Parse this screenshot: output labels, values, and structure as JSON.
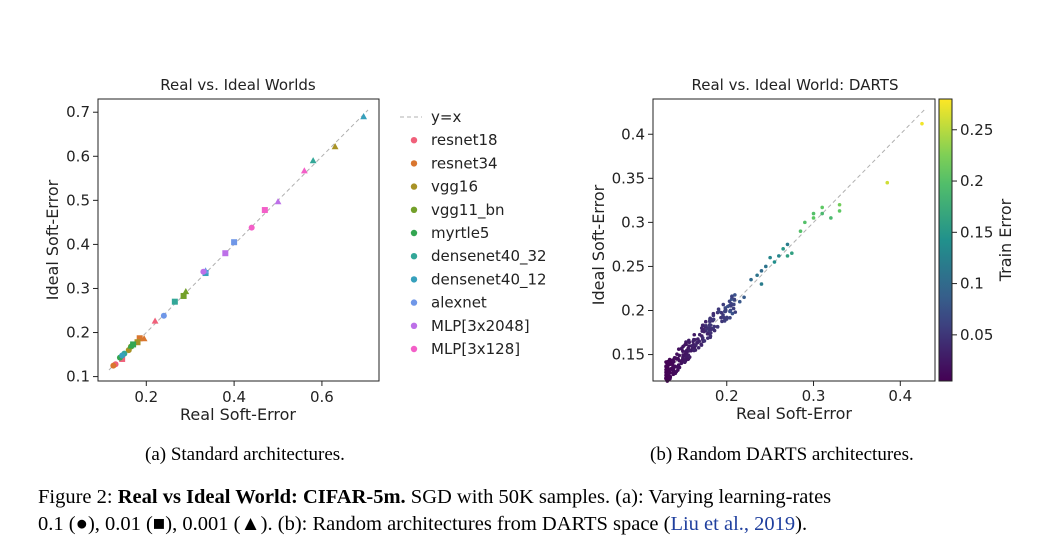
{
  "charts_meta": {
    "left_caption": "(a) Standard architectures.",
    "right_caption": "(b) Random DARTS architectures."
  },
  "caption": {
    "label": "Figure 2:",
    "bold": "Real vs Ideal World: CIFAR-5m.",
    "line1_rest": "SGD with 50K samples. (a): Varying learning-rates",
    "line2_pre": "0.1 (●), 0.01 (■), 0.001 (▲). (b): Random architectures from DARTS space (",
    "citation": "Liu et al., 2019",
    "line2_post": ")."
  },
  "chart_data": [
    {
      "type": "scatter",
      "title": "Real vs. Ideal Worlds",
      "xlabel": "Real Soft-Error",
      "ylabel": "Ideal Soft-Error",
      "xlim": [
        0.09,
        0.73
      ],
      "ylim": [
        0.09,
        0.73
      ],
      "xticks": [
        0.2,
        0.4,
        0.6
      ],
      "yticks": [
        0.1,
        0.2,
        0.3,
        0.4,
        0.5,
        0.6,
        0.7
      ],
      "grid": false,
      "legend_position": "outside-right",
      "reference_line": {
        "name": "y=x",
        "color": "#b0b0b0"
      },
      "series": [
        {
          "name": "resnet18",
          "color": "#f0607a",
          "points": [
            [
              0.13,
              0.128,
              "circle"
            ],
            [
              0.145,
              0.14,
              "square"
            ],
            [
              0.22,
              0.226,
              "triangle"
            ]
          ]
        },
        {
          "name": "resnet34",
          "color": "#d9762f",
          "points": [
            [
              0.125,
              0.125,
              "circle"
            ],
            [
              0.185,
              0.187,
              "square"
            ],
            [
              0.195,
              0.186,
              "triangle"
            ]
          ]
        },
        {
          "name": "vgg16",
          "color": "#a89226",
          "points": [
            [
              0.16,
              0.16,
              "circle"
            ],
            [
              0.18,
              0.178,
              "square"
            ],
            [
              0.63,
              0.622,
              "triangle"
            ]
          ]
        },
        {
          "name": "vgg11_bn",
          "color": "#73a02a",
          "points": [
            [
              0.165,
              0.168,
              "circle"
            ],
            [
              0.285,
              0.283,
              "square"
            ],
            [
              0.29,
              0.293,
              "triangle"
            ]
          ]
        },
        {
          "name": "myrtle5",
          "color": "#33a651",
          "points": [
            [
              0.14,
              0.143,
              "circle"
            ],
            [
              0.17,
              0.173,
              "square"
            ],
            [
              0.165,
              0.17,
              "triangle"
            ]
          ]
        },
        {
          "name": "densenet40_32",
          "color": "#33a798",
          "points": [
            [
              0.15,
              0.152,
              "circle"
            ],
            [
              0.265,
              0.27,
              "square"
            ],
            [
              0.58,
              0.59,
              "triangle"
            ]
          ]
        },
        {
          "name": "densenet40_12",
          "color": "#36a0bc",
          "points": [
            [
              0.145,
              0.148,
              "circle"
            ],
            [
              0.335,
              0.335,
              "square"
            ],
            [
              0.695,
              0.69,
              "triangle"
            ]
          ]
        },
        {
          "name": "alexnet",
          "color": "#6f97e8",
          "points": [
            [
              0.24,
              0.238,
              "circle"
            ],
            [
              0.4,
              0.405,
              "square"
            ],
            [
              0.335,
              0.34,
              "triangle"
            ]
          ]
        },
        {
          "name": "MLP[3x2048]",
          "color": "#bd70e8",
          "points": [
            [
              0.33,
              0.338,
              "circle"
            ],
            [
              0.38,
              0.38,
              "square"
            ],
            [
              0.5,
              0.497,
              "triangle"
            ]
          ]
        },
        {
          "name": "MLP[3x128]",
          "color": "#f35fc8",
          "points": [
            [
              0.44,
              0.438,
              "circle"
            ],
            [
              0.47,
              0.478,
              "square"
            ],
            [
              0.56,
              0.567,
              "triangle"
            ]
          ]
        }
      ]
    },
    {
      "type": "scatter",
      "title": "Real vs. Ideal World: DARTS",
      "xlabel": "Real Soft-Error",
      "ylabel": "Ideal Soft-Error",
      "xlim": [
        0.115,
        0.44
      ],
      "ylim": [
        0.12,
        0.44
      ],
      "xticks": [
        0.2,
        0.3,
        0.4
      ],
      "yticks": [
        0.15,
        0.2,
        0.25,
        0.3,
        0.35,
        0.4
      ],
      "grid": false,
      "reference_line": {
        "name": "y=x",
        "color": "#b0b0b0"
      },
      "colorbar": {
        "label": "Train Error",
        "colormap": "viridis",
        "range": [
          0.005,
          0.28
        ],
        "ticks": [
          0.05,
          0.1,
          0.15,
          0.2,
          0.25
        ]
      },
      "cluster": {
        "count": 230,
        "x_range": [
          0.13,
          0.21
        ],
        "ideal_minus_real_range": [
          -0.012,
          0.012
        ],
        "train_error_range": [
          0.005,
          0.08
        ]
      },
      "points": [
        [
          0.215,
          0.21,
          0.08
        ],
        [
          0.22,
          0.215,
          0.085
        ],
        [
          0.228,
          0.235,
          0.1
        ],
        [
          0.235,
          0.24,
          0.11
        ],
        [
          0.24,
          0.245,
          0.1
        ],
        [
          0.245,
          0.25,
          0.11
        ],
        [
          0.25,
          0.26,
          0.13
        ],
        [
          0.24,
          0.23,
          0.12
        ],
        [
          0.255,
          0.255,
          0.14
        ],
        [
          0.26,
          0.262,
          0.13
        ],
        [
          0.265,
          0.27,
          0.15
        ],
        [
          0.27,
          0.262,
          0.16
        ],
        [
          0.275,
          0.265,
          0.16
        ],
        [
          0.27,
          0.275,
          0.12
        ],
        [
          0.29,
          0.3,
          0.2
        ],
        [
          0.3,
          0.31,
          0.2
        ],
        [
          0.285,
          0.29,
          0.2
        ],
        [
          0.3,
          0.305,
          0.21
        ],
        [
          0.31,
          0.31,
          0.19
        ],
        [
          0.31,
          0.317,
          0.21
        ],
        [
          0.33,
          0.32,
          0.22
        ],
        [
          0.33,
          0.313,
          0.21
        ],
        [
          0.32,
          0.305,
          0.19
        ],
        [
          0.385,
          0.345,
          0.26
        ],
        [
          0.425,
          0.412,
          0.275
        ]
      ]
    }
  ]
}
